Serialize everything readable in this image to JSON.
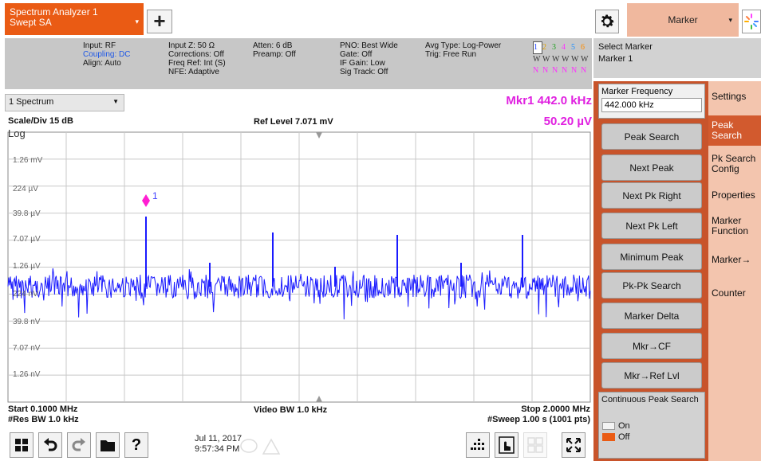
{
  "app": {
    "title_line1": "Spectrum Analyzer 1",
    "title_line2": "Swept SA",
    "caret": "▾",
    "add": "+"
  },
  "menu": {
    "label": "Marker",
    "caret": "▾"
  },
  "info": {
    "c1": [
      "Input: RF",
      "Coupling: DC",
      "Align: Auto"
    ],
    "c2": [
      "Input Z: 50 Ω",
      "Corrections: Off",
      "Freq Ref: Int (S)",
      "NFE: Adaptive"
    ],
    "c3": [
      "Atten: 6 dB",
      "Preamp: Off"
    ],
    "c4": [
      "PNO: Best Wide",
      "Gate: Off",
      "IF Gain: Low",
      "Sig Track: Off"
    ],
    "c5": [
      "Avg Type: Log-Power",
      "Trig: Free Run"
    ],
    "trace_nums": [
      "1",
      "2",
      "3",
      "4",
      "5",
      "6"
    ],
    "trace_nums_colors": [
      "#1e40ff",
      "#e0a000",
      "#20a020",
      "#ff30ff",
      "#2090ff",
      "#ff8c00"
    ],
    "trace_w": [
      "W",
      "W",
      "W",
      "W",
      "W",
      "W"
    ],
    "trace_n": [
      "N",
      "N",
      "N",
      "N",
      "N",
      "N"
    ]
  },
  "select_marker": {
    "title": "Select Marker",
    "value": "Marker 1"
  },
  "graph": {
    "trace": "1 Spectrum",
    "mkr_label": "Mkr1  442.0 kHz",
    "mkr_value": "50.20 µV",
    "scale": "Scale/Div 15 dB",
    "log": "Log",
    "ref_level": "Ref Level 7.071 mV",
    "ylabels": [
      "1.26 mV",
      "224 µV",
      "39.8 µV",
      "7.07 µV",
      "1.26 µV",
      "224 nV",
      "39.8 nV",
      "7.07 nV",
      "1.26 nV"
    ],
    "marker_num": "1",
    "start": "Start 0.1000 MHz",
    "res_bw": "#Res BW 1.0 kHz",
    "video_bw": "Video BW 1.0 kHz",
    "stop": "Stop 2.0000 MHz",
    "sweep": "#Sweep 1.00 s (1001 pts)",
    "trace_color": "#1a1aff",
    "marker_color": "#ff1ed2"
  },
  "panel": {
    "freq_title": "Marker Frequency",
    "freq_value": "442.000 kHz",
    "softkeys": [
      "Peak Search",
      "Next Peak",
      "Next Pk Right",
      "Next Pk Left",
      "Minimum Peak",
      "Pk-Pk Search",
      "Marker Delta",
      "Mkr→CF",
      "Mkr→Ref Lvl"
    ],
    "cps_title": "Continuous Peak Search",
    "cps_on": "On",
    "cps_off": "Off"
  },
  "tabs": [
    {
      "label": "Settings",
      "active": false
    },
    {
      "label": "Peak Search",
      "active": true
    },
    {
      "label": "Pk Search Config",
      "active": false
    },
    {
      "label": "Properties",
      "active": false
    },
    {
      "label": "Marker Function",
      "active": false
    },
    {
      "label": "Marker→",
      "active": false
    },
    {
      "label": "Counter",
      "active": false
    }
  ],
  "clock": {
    "date": "Jul 11, 2017",
    "time": "9:57:34 PM"
  },
  "taskbar": {
    "help": "?"
  },
  "colors": {
    "accent": "#ea5b14",
    "panel": "#c8542b",
    "tab_bg": "#f3c5ae"
  }
}
